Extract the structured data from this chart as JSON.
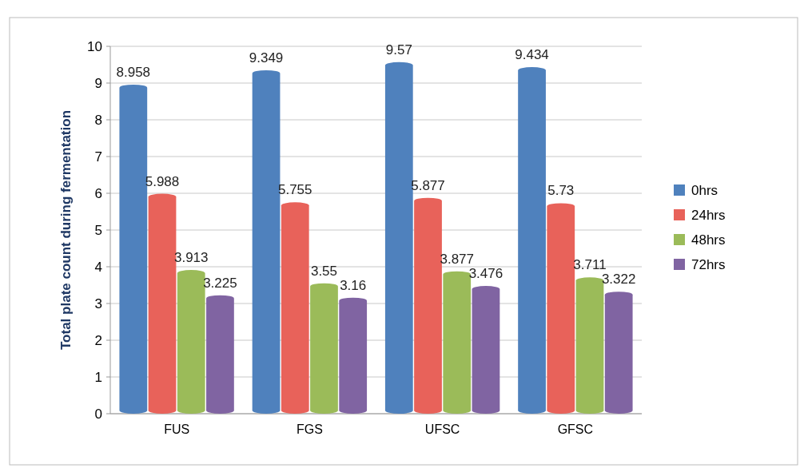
{
  "chart_data": {
    "type": "bar",
    "ylabel": "Total plate count during fermentation",
    "categories": [
      "FUS",
      "FGS",
      "UFSC",
      "GFSC"
    ],
    "series": [
      {
        "name": "0hrs",
        "color": "#4f81bd",
        "values": [
          8.958,
          9.349,
          9.57,
          9.434
        ]
      },
      {
        "name": "24hrs",
        "color": "#e8625a",
        "values": [
          5.988,
          5.755,
          5.877,
          5.73
        ]
      },
      {
        "name": "48hrs",
        "color": "#9bbb59",
        "values": [
          3.913,
          3.55,
          3.877,
          3.711
        ]
      },
      {
        "name": "72hrs",
        "color": "#8064a2",
        "values": [
          3.225,
          3.16,
          3.476,
          3.322
        ]
      }
    ],
    "ylim": [
      0,
      10
    ],
    "yticks": [
      0,
      1,
      2,
      3,
      4,
      5,
      6,
      7,
      8,
      9,
      10
    ],
    "grid": "y",
    "legend": "right",
    "data_labels": true
  }
}
